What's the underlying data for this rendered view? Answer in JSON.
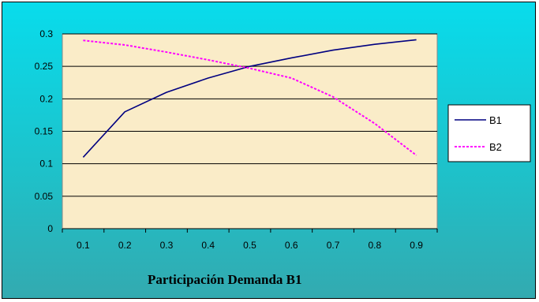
{
  "colors": {
    "series_b1": "#000080",
    "series_b2": "#ff00ff",
    "plot_background": "#faecc8",
    "gridline": "#000000"
  },
  "chart_data": {
    "type": "line",
    "title": "",
    "xlabel": "Participación Demanda B1",
    "ylabel": "",
    "x": [
      0.1,
      0.2,
      0.3,
      0.4,
      0.5,
      0.6,
      0.7,
      0.8,
      0.9
    ],
    "x_tick_labels": [
      "0.1",
      "0.2",
      "0.3",
      "0.4",
      "0.5",
      "0.6",
      "0.7",
      "0.8",
      "0.9"
    ],
    "y_ticks": [
      0,
      0.05,
      0.1,
      0.15,
      0.2,
      0.25,
      0.3
    ],
    "y_tick_labels": [
      "0",
      "0.05",
      "0.1",
      "0.15",
      "0.2",
      "0.25",
      "0.3"
    ],
    "ylim": [
      0,
      0.3
    ],
    "grid": true,
    "legend_position": "right",
    "series": [
      {
        "name": "B1",
        "style": "solid",
        "values": [
          0.11,
          0.18,
          0.21,
          0.232,
          0.25,
          0.263,
          0.275,
          0.284,
          0.291
        ]
      },
      {
        "name": "B2",
        "style": "dotted",
        "values": [
          0.29,
          0.283,
          0.272,
          0.26,
          0.247,
          0.232,
          0.203,
          0.162,
          0.113
        ]
      }
    ]
  }
}
